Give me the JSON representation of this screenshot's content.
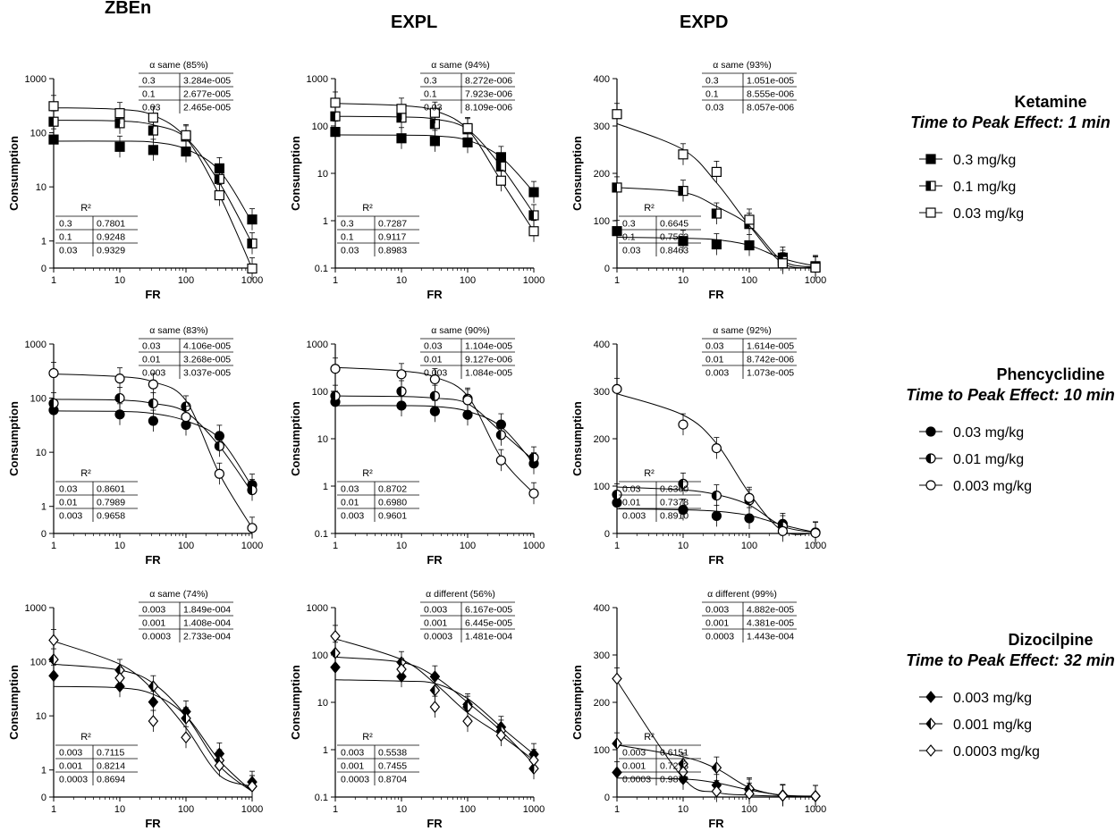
{
  "columns": [
    "ZBEn",
    "EXPL",
    "EXPD"
  ],
  "rows": [
    {
      "drug": "Ketamine",
      "peak": "Time to Peak Effect: 1 min",
      "shape": "square",
      "doses": [
        "0.3 mg/kg",
        "0.1 mg/kg",
        "0.03 mg/kg"
      ]
    },
    {
      "drug": "Phencyclidine",
      "peak": "Time to Peak Effect: 10 min",
      "shape": "circle",
      "doses": [
        "0.03 mg/kg",
        "0.01 mg/kg",
        "0.003 mg/kg"
      ]
    },
    {
      "drug": "Dizocilpine",
      "peak": "Time to Peak Effect: 32 min",
      "shape": "diamond",
      "doses": [
        "0.003 mg/kg",
        "0.001 mg/kg",
        "0.0003 mg/kg"
      ]
    }
  ],
  "fill_styles": [
    "filled",
    "half",
    "open"
  ],
  "chart_data": [
    {
      "id": "ketamine-zben",
      "type": "scatter",
      "xscale": "log",
      "yscale": "log",
      "x": [
        1,
        10,
        32,
        100,
        320,
        1000
      ],
      "xlabel": "FR",
      "ylabel": "Consumption",
      "yticks": [
        "0",
        "1",
        "10",
        "100",
        "1000"
      ],
      "series": [
        {
          "name": "0.3 mg/kg",
          "values": [
            75,
            55,
            48,
            45,
            22,
            2.5
          ],
          "fit": [
            70,
            70,
            67,
            50,
            20,
            2.2
          ]
        },
        {
          "name": "0.1 mg/kg",
          "values": [
            160,
            150,
            110,
            85,
            14,
            0.9
          ],
          "fit": [
            170,
            165,
            140,
            80,
            12,
            0.9
          ]
        },
        {
          "name": "0.03 mg/kg",
          "values": [
            310,
            230,
            190,
            90,
            7,
            0.3
          ],
          "fit": [
            290,
            270,
            210,
            80,
            7,
            0.3
          ]
        }
      ],
      "alpha": "α same (85%)",
      "alpha_table": [
        [
          "0.3",
          "3.284e-005"
        ],
        [
          "0.1",
          "2.677e-005"
        ],
        [
          "0.03",
          "2.465e-005"
        ]
      ],
      "r2_label": "R²",
      "r2_table": [
        [
          "0.3",
          "0.7801"
        ],
        [
          "0.1",
          "0.9248"
        ],
        [
          "0.03",
          "0.9329"
        ]
      ]
    },
    {
      "id": "ketamine-expl",
      "type": "scatter",
      "xscale": "log",
      "yscale": "log",
      "x": [
        1,
        10,
        32,
        100,
        320,
        1000
      ],
      "xlabel": "FR",
      "ylabel": "Consumption",
      "yticks": [
        "0.1",
        "1",
        "10",
        "100",
        "1000"
      ],
      "series": [
        {
          "name": "0.3 mg/kg",
          "values": [
            75,
            55,
            48,
            45,
            22,
            4
          ],
          "fit": [
            65,
            64,
            62,
            50,
            22,
            4
          ]
        },
        {
          "name": "0.1 mg/kg",
          "values": [
            160,
            150,
            110,
            85,
            14,
            1.3
          ],
          "fit": [
            160,
            155,
            140,
            85,
            14,
            1.4
          ]
        },
        {
          "name": "0.03 mg/kg",
          "values": [
            310,
            230,
            190,
            90,
            7,
            0.6
          ],
          "fit": [
            300,
            270,
            210,
            85,
            7,
            0.6
          ]
        }
      ],
      "alpha": "α same (94%)",
      "alpha_table": [
        [
          "0.3",
          "8.272e-006"
        ],
        [
          "0.1",
          "7.923e-006"
        ],
        [
          "0.03",
          "8.109e-006"
        ]
      ],
      "r2_label": "R²",
      "r2_table": [
        [
          "0.3",
          "0.7287"
        ],
        [
          "0.1",
          "0.9117"
        ],
        [
          "0.03",
          "0.8983"
        ]
      ]
    },
    {
      "id": "ketamine-expd",
      "type": "scatter",
      "xscale": "log",
      "yscale": "linear",
      "x": [
        1,
        10,
        32,
        100,
        320,
        1000
      ],
      "xlabel": "FR",
      "ylabel": "Consumption",
      "yticks": [
        "0",
        "100",
        "200",
        "300",
        "400"
      ],
      "ylim": [
        0,
        400
      ],
      "series": [
        {
          "name": "0.3 mg/kg",
          "values": [
            78,
            57,
            50,
            48,
            22,
            4
          ],
          "fit": [
            65,
            63,
            60,
            48,
            20,
            4
          ]
        },
        {
          "name": "0.1 mg/kg",
          "values": [
            170,
            163,
            115,
            93,
            15,
            2
          ],
          "fit": [
            170,
            160,
            130,
            90,
            15,
            2
          ]
        },
        {
          "name": "0.03 mg/kg",
          "values": [
            325,
            240,
            203,
            102,
            10,
            1
          ],
          "fit": [
            305,
            250,
            180,
            90,
            10,
            1
          ]
        }
      ],
      "alpha": "α same (93%)",
      "alpha_table": [
        [
          "0.3",
          "1.051e-005"
        ],
        [
          "0.1",
          "8.555e-006"
        ],
        [
          "0.03",
          "8.057e-006"
        ]
      ],
      "r2_label": "R²",
      "r2_table": [
        [
          "0.3",
          "0.6645"
        ],
        [
          "0.1",
          "0.7562"
        ],
        [
          "0.03",
          "0.8463"
        ]
      ]
    },
    {
      "id": "phencyclidine-zben",
      "type": "scatter",
      "xscale": "log",
      "yscale": "log",
      "x": [
        1,
        10,
        32,
        100,
        320,
        1000
      ],
      "xlabel": "FR",
      "ylabel": "Consumption",
      "yticks": [
        "0",
        "1",
        "10",
        "100",
        "1000"
      ],
      "series": [
        {
          "name": "0.03 mg/kg",
          "values": [
            60,
            50,
            38,
            32,
            20,
            2.5
          ],
          "fit": [
            58,
            57,
            52,
            38,
            18,
            2.3
          ]
        },
        {
          "name": "0.01 mg/kg",
          "values": [
            80,
            100,
            80,
            70,
            13,
            2
          ],
          "fit": [
            95,
            92,
            80,
            55,
            13,
            1.8
          ]
        },
        {
          "name": "0.003 mg/kg",
          "values": [
            290,
            230,
            180,
            45,
            4,
            0.4
          ],
          "fit": [
            280,
            250,
            200,
            90,
            4,
            0.4
          ]
        }
      ],
      "alpha": "α same (83%)",
      "alpha_table": [
        [
          "0.03",
          "4.106e-005"
        ],
        [
          "0.01",
          "3.268e-005"
        ],
        [
          "0.003",
          "3.037e-005"
        ]
      ],
      "r2_label": "R²",
      "r2_table": [
        [
          "0.03",
          "0.8601"
        ],
        [
          "0.01",
          "0.7989"
        ],
        [
          "0.003",
          "0.9658"
        ]
      ]
    },
    {
      "id": "phencyclidine-expl",
      "type": "scatter",
      "xscale": "log",
      "yscale": "log",
      "x": [
        1,
        10,
        32,
        100,
        320,
        1000
      ],
      "xlabel": "FR",
      "ylabel": "Consumption",
      "yticks": [
        "0.1",
        "1",
        "10",
        "100",
        "1000"
      ],
      "series": [
        {
          "name": "0.03 mg/kg",
          "values": [
            60,
            50,
            38,
            32,
            20,
            3
          ],
          "fit": [
            50,
            50,
            48,
            38,
            18,
            3
          ]
        },
        {
          "name": "0.01 mg/kg",
          "values": [
            80,
            100,
            80,
            70,
            12,
            4
          ],
          "fit": [
            80,
            78,
            72,
            55,
            14,
            3.5
          ]
        },
        {
          "name": "0.003 mg/kg",
          "values": [
            300,
            230,
            180,
            65,
            3.5,
            0.7
          ],
          "fit": [
            320,
            270,
            200,
            80,
            4,
            0.7
          ]
        }
      ],
      "alpha": "α same (90%)",
      "alpha_table": [
        [
          "0.03",
          "1.104e-005"
        ],
        [
          "0.01",
          "9.127e-006"
        ],
        [
          "0.003",
          "1.084e-005"
        ]
      ],
      "r2_label": "R²",
      "r2_table": [
        [
          "0.03",
          "0.8702"
        ],
        [
          "0.01",
          "0.6980"
        ],
        [
          "0.003",
          "0.9601"
        ]
      ]
    },
    {
      "id": "phencyclidine-expd",
      "type": "scatter",
      "xscale": "log",
      "yscale": "linear",
      "x": [
        1,
        10,
        32,
        100,
        320,
        1000
      ],
      "xlabel": "FR",
      "ylabel": "Consumption",
      "yticks": [
        "0",
        "100",
        "200",
        "300",
        "400"
      ],
      "ylim": [
        0,
        400
      ],
      "series": [
        {
          "name": "0.03 mg/kg",
          "values": [
            65,
            50,
            37,
            32,
            20,
            2
          ],
          "fit": [
            52,
            50,
            47,
            38,
            18,
            2
          ]
        },
        {
          "name": "0.01 mg/kg",
          "values": [
            82,
            105,
            80,
            70,
            15,
            2
          ],
          "fit": [
            98,
            92,
            82,
            60,
            15,
            2
          ]
        },
        {
          "name": "0.003 mg/kg",
          "values": [
            305,
            230,
            180,
            75,
            5,
            1
          ],
          "fit": [
            295,
            250,
            190,
            85,
            5,
            1
          ]
        }
      ],
      "alpha": "α same (92%)",
      "alpha_table": [
        [
          "0.03",
          "1.614e-005"
        ],
        [
          "0.01",
          "8.742e-006"
        ],
        [
          "0.003",
          "1.073e-005"
        ]
      ],
      "r2_label": "R²",
      "r2_table": [
        [
          "0.03",
          "0.6360"
        ],
        [
          "0.01",
          "0.7378"
        ],
        [
          "0.003",
          "0.8910"
        ]
      ]
    },
    {
      "id": "dizocilpine-zben",
      "type": "scatter",
      "xscale": "log",
      "yscale": "log",
      "x": [
        1,
        10,
        32,
        100,
        320,
        1000
      ],
      "xlabel": "FR",
      "ylabel": "Consumption",
      "yticks": [
        "0",
        "1",
        "10",
        "100",
        "1000"
      ],
      "series": [
        {
          "name": "0.003 mg/kg",
          "values": [
            55,
            35,
            18,
            12,
            2,
            0.6
          ],
          "fit": [
            35,
            33,
            25,
            10,
            1.5,
            0.4
          ]
        },
        {
          "name": "0.001 mg/kg",
          "values": [
            110,
            70,
            35,
            9,
            1.5,
            0.5
          ],
          "fit": [
            90,
            70,
            40,
            10,
            1.2,
            0.4
          ]
        },
        {
          "name": "0.0003 mg/kg",
          "values": [
            250,
            50,
            8,
            4,
            1.2,
            0.5
          ],
          "fit": [
            240,
            90,
            30,
            6,
            0.8,
            0.5
          ]
        }
      ],
      "alpha": "α same (74%)",
      "alpha_table": [
        [
          "0.003",
          "1.849e-004"
        ],
        [
          "0.001",
          "1.408e-004"
        ],
        [
          "0.0003",
          "2.733e-004"
        ]
      ],
      "r2_label": "R²",
      "r2_table": [
        [
          "0.003",
          "0.7115"
        ],
        [
          "0.001",
          "0.8214"
        ],
        [
          "0.0003",
          "0.8694"
        ]
      ]
    },
    {
      "id": "dizocilpine-expl",
      "type": "scatter",
      "xscale": "log",
      "yscale": "log",
      "x": [
        1,
        10,
        32,
        100,
        320,
        1000
      ],
      "xlabel": "FR",
      "ylabel": "Consumption",
      "yticks": [
        "0.1",
        "1",
        "10",
        "100",
        "1000"
      ],
      "series": [
        {
          "name": "0.003 mg/kg",
          "values": [
            55,
            35,
            35,
            9,
            3,
            0.8
          ],
          "fit": [
            30,
            28,
            25,
            12,
            3,
            0.8
          ]
        },
        {
          "name": "0.001 mg/kg",
          "values": [
            110,
            70,
            18,
            8,
            2.5,
            0.4
          ],
          "fit": [
            90,
            70,
            35,
            10,
            2.5,
            0.5
          ]
        },
        {
          "name": "0.0003 mg/kg",
          "values": [
            250,
            50,
            8,
            4,
            2,
            0.6
          ],
          "fit": [
            220,
            80,
            25,
            6,
            2,
            0.6
          ]
        }
      ],
      "alpha": "α different (56%)",
      "alpha_table": [
        [
          "0.003",
          "6.167e-005"
        ],
        [
          "0.001",
          "6.445e-005"
        ],
        [
          "0.0003",
          "1.481e-004"
        ]
      ],
      "r2_label": "R²",
      "r2_table": [
        [
          "0.003",
          "0.5538"
        ],
        [
          "0.001",
          "0.7455"
        ],
        [
          "0.0003",
          "0.8704"
        ]
      ]
    },
    {
      "id": "dizocilpine-expd",
      "type": "scatter",
      "xscale": "log",
      "yscale": "linear",
      "x": [
        1,
        10,
        32,
        100,
        320,
        1000
      ],
      "xlabel": "FR",
      "ylabel": "Consumption",
      "yticks": [
        "0",
        "100",
        "200",
        "300",
        "400"
      ],
      "ylim": [
        0,
        400
      ],
      "series": [
        {
          "name": "0.003 mg/kg",
          "values": [
            52,
            38,
            25,
            15,
            4,
            2
          ],
          "fit": [
            40,
            38,
            30,
            15,
            4,
            2
          ]
        },
        {
          "name": "0.001 mg/kg",
          "values": [
            113,
            70,
            62,
            18,
            3,
            2
          ],
          "fit": [
            110,
            85,
            60,
            20,
            3,
            2
          ]
        },
        {
          "name": "0.0003 mg/kg",
          "values": [
            250,
            53,
            12,
            7,
            3,
            2
          ],
          "fit": [
            245,
            40,
            10,
            4,
            2,
            2
          ]
        }
      ],
      "alpha": "α different (99%)",
      "alpha_table": [
        [
          "0.003",
          "4.882e-005"
        ],
        [
          "0.001",
          "4.381e-005"
        ],
        [
          "0.0003",
          "1.443e-004"
        ]
      ],
      "r2_label": "R²",
      "r2_table": [
        [
          "0.003",
          "0.6151"
        ],
        [
          "0.001",
          "0.7273"
        ],
        [
          "0.0003",
          "0.9872"
        ]
      ]
    }
  ]
}
